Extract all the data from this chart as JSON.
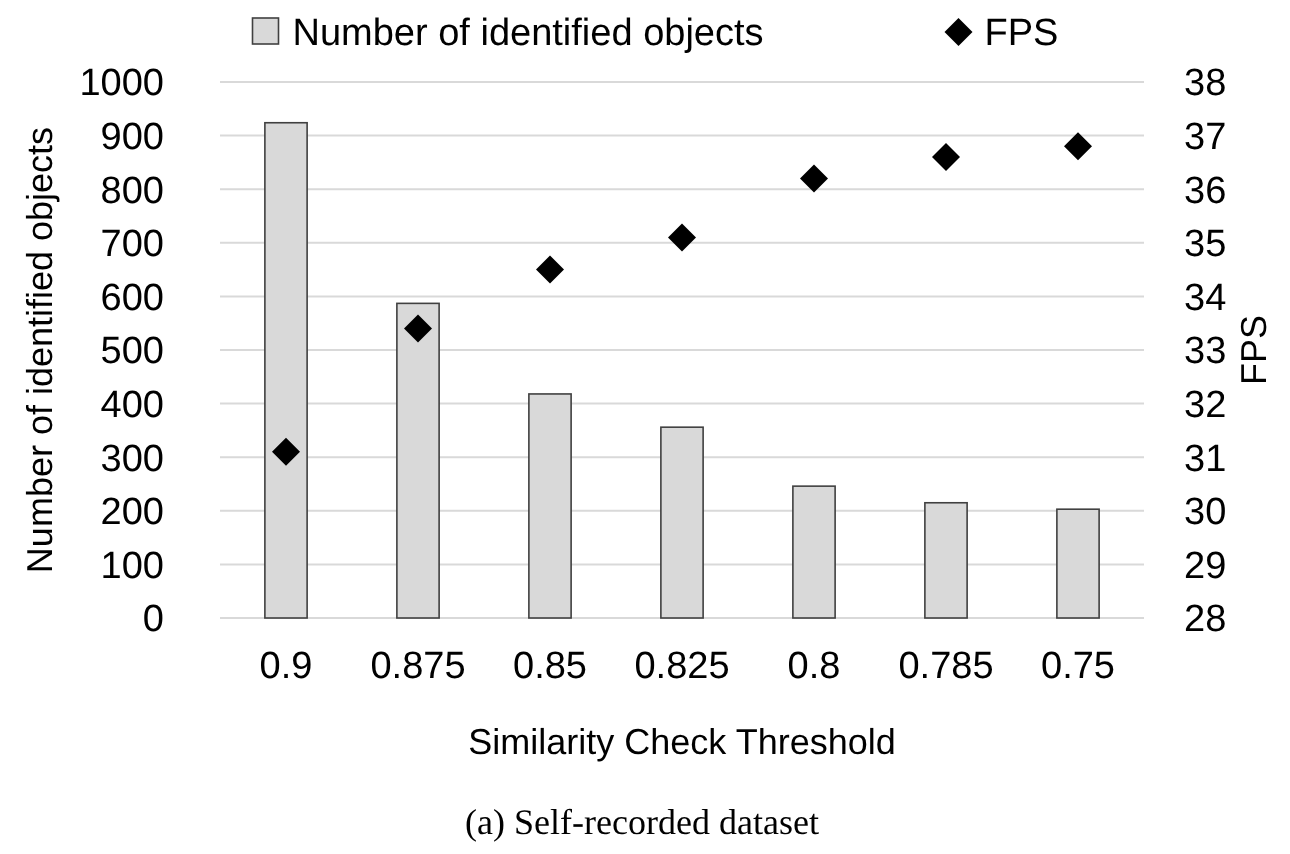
{
  "chart_data": {
    "type": "bar",
    "xlabel": "Similarity Check Threshold",
    "ylabel": "Number of identified objects",
    "y2label": "FPS",
    "categories": [
      "0.9",
      "0.875",
      "0.85",
      "0.825",
      "0.8",
      "0.785",
      "0.75"
    ],
    "series": [
      {
        "name": "Number of identified objects",
        "color": "#d9d9d9",
        "values": [
          924,
          587,
          418,
          356,
          246,
          215,
          203
        ]
      },
      {
        "name": "FPS",
        "type": "scatter",
        "axis": "y2",
        "color": "#000000",
        "marker": "diamond",
        "values": [
          31.1,
          33.4,
          34.5,
          35.1,
          36.2,
          36.6,
          36.8
        ]
      }
    ],
    "ylim": [
      0,
      1000
    ],
    "yticks": [
      0,
      100,
      200,
      300,
      400,
      500,
      600,
      700,
      800,
      900,
      1000
    ],
    "y2lim": [
      28,
      38
    ],
    "y2ticks": [
      28,
      29,
      30,
      31,
      32,
      33,
      34,
      35,
      36,
      37,
      38
    ],
    "grid": "y",
    "legend": "top",
    "annotations": [
      "(a) Self-recorded dataset"
    ]
  }
}
